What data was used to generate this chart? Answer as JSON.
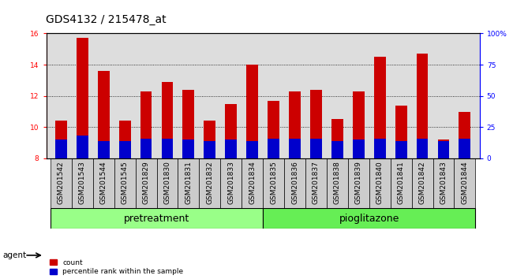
{
  "title": "GDS4132 / 215478_at",
  "samples": [
    "GSM201542",
    "GSM201543",
    "GSM201544",
    "GSM201545",
    "GSM201829",
    "GSM201830",
    "GSM201831",
    "GSM201832",
    "GSM201833",
    "GSM201834",
    "GSM201835",
    "GSM201836",
    "GSM201837",
    "GSM201838",
    "GSM201839",
    "GSM201840",
    "GSM201841",
    "GSM201842",
    "GSM201843",
    "GSM201844"
  ],
  "count_values": [
    10.4,
    15.7,
    13.6,
    10.4,
    12.3,
    12.9,
    12.4,
    10.4,
    11.5,
    14.0,
    11.7,
    12.3,
    12.4,
    10.5,
    12.3,
    14.5,
    11.4,
    14.7,
    9.2,
    11.0
  ],
  "percentile_values": [
    15,
    18,
    14,
    14,
    16,
    16,
    15,
    14,
    15,
    14,
    16,
    16,
    16,
    14,
    15,
    16,
    14,
    16,
    14,
    16
  ],
  "bar_bottom": 8.0,
  "ylim_left": [
    8,
    16
  ],
  "ylim_right": [
    0,
    100
  ],
  "yticks_left": [
    8,
    10,
    12,
    14,
    16
  ],
  "yticks_right": [
    0,
    25,
    50,
    75,
    100
  ],
  "ytick_labels_right": [
    "0",
    "25",
    "50",
    "75",
    "100%"
  ],
  "count_color": "#cc0000",
  "percentile_color": "#0000cc",
  "bar_width": 0.55,
  "groups": [
    {
      "label": "pretreatment",
      "start": 0,
      "end": 9,
      "color": "#99ff88"
    },
    {
      "label": "pioglitazone",
      "start": 10,
      "end": 19,
      "color": "#66ee55"
    }
  ],
  "agent_label": "agent",
  "legend_count_label": "count",
  "legend_percentile_label": "percentile rank within the sample",
  "plot_bg_color": "#dddddd",
  "xtick_bg_color": "#cccccc",
  "title_fontsize": 10,
  "tick_fontsize": 6.5,
  "label_fontsize": 9
}
